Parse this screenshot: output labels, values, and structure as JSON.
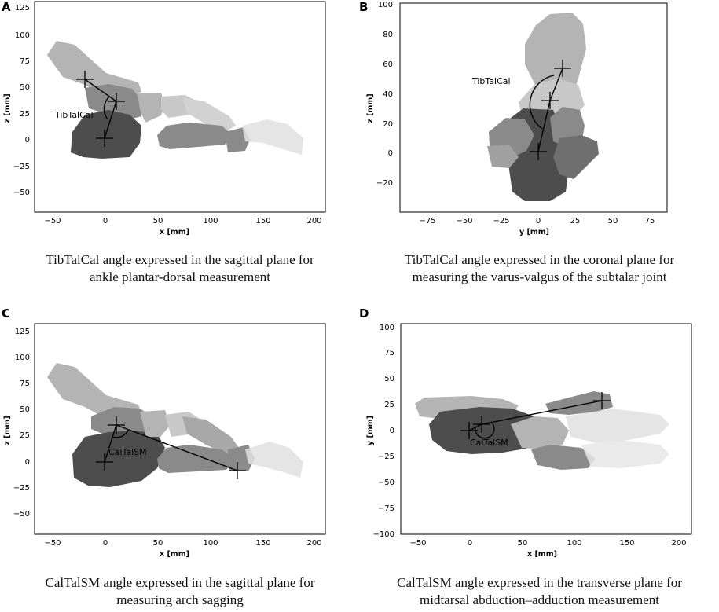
{
  "panels": [
    {
      "letter": "A",
      "caption_line1": "TibTalCal angle expressed in the sagittal plane for",
      "caption_line2": "ankle plantar-dorsal measurement",
      "angle_label": "TibTalCal",
      "xlabel": "x [mm]",
      "ylabel": "z [mm]",
      "xticks": [
        "−50",
        "0",
        "50",
        "100",
        "150",
        "200"
      ],
      "yticks": [
        "125",
        "100",
        "75",
        "50",
        "25",
        "0",
        "−25",
        "−50"
      ]
    },
    {
      "letter": "B",
      "caption_line1": "TibTalCal angle expressed in the coronal plane for",
      "caption_line2": "measuring the varus-valgus of the subtalar joint",
      "angle_label": "TibTalCal",
      "xlabel": "y [mm]",
      "ylabel": "z [mm]",
      "xticks": [
        "−75",
        "−50",
        "−25",
        "0",
        "25",
        "50",
        "75"
      ],
      "yticks": [
        "100",
        "80",
        "60",
        "40",
        "20",
        "0",
        "−20"
      ]
    },
    {
      "letter": "C",
      "caption_line1": "CalTalSM angle expressed in the sagittal plane for",
      "caption_line2": "measuring arch sagging",
      "angle_label": "CalTalSM",
      "xlabel": "x [mm]",
      "ylabel": "z [mm]",
      "xticks": [
        "−50",
        "0",
        "50",
        "100",
        "150",
        "200"
      ],
      "yticks": [
        "125",
        "100",
        "75",
        "50",
        "25",
        "0",
        "−25",
        "−50"
      ]
    },
    {
      "letter": "D",
      "caption_line1": "CalTalSM angle expressed in the transverse plane for",
      "caption_line2": "midtarsal abduction–adduction measurement",
      "angle_label": "CalTalSM",
      "xlabel": "x [mm]",
      "ylabel": "y [mm]",
      "xticks": [
        "−50",
        "0",
        "50",
        "100",
        "150",
        "200"
      ],
      "yticks": [
        "100",
        "75",
        "50",
        "25",
        "0",
        "−25",
        "−50",
        "−75",
        "−100"
      ]
    }
  ],
  "colors": {
    "bone_dark": "#4d4d4d",
    "bone_mid": "#8a8a8a",
    "bone_light": "#b4b4b4",
    "bone_pale": "#d2d2d2",
    "line": "#000000"
  }
}
